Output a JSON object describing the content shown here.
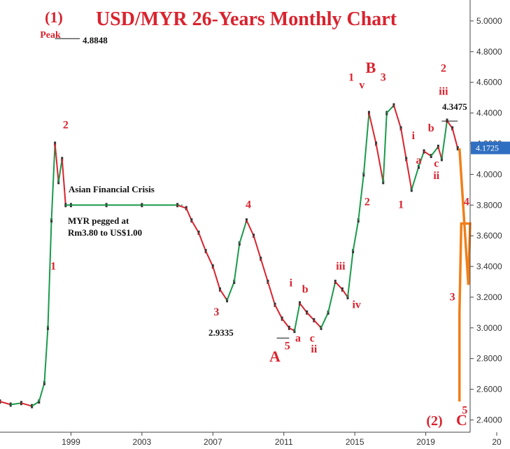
{
  "chart_data": {
    "type": "candlestick",
    "title": "USD/MYR 26-Years Monthly Chart",
    "xlim": [
      1995.0,
      2021.5
    ],
    "ylim": [
      2.32,
      5.1
    ],
    "x_ticks": [
      "1999",
      "2003",
      "2007",
      "2011",
      "2015",
      "2019",
      "20"
    ],
    "y_ticks": [
      "5.0000",
      "4.8000",
      "4.6000",
      "4.4000",
      "4.2000",
      "4.0000",
      "3.8000",
      "3.6000",
      "3.4000",
      "3.2000",
      "3.0000",
      "2.8000",
      "2.6000",
      "2.4000"
    ],
    "last_price": "4.1725",
    "grid": false,
    "series": [
      {
        "x": [
          1995.0,
          1995.6,
          1996.2,
          1996.8,
          1997.2,
          1997.5,
          1997.7,
          1997.9,
          1998.1,
          1998.3,
          1998.5,
          1998.7,
          1999.0,
          2001.0,
          2003.0,
          2005.0,
          2005.5,
          2005.8,
          2006.2,
          2006.6,
          2007.0,
          2007.4,
          2007.8,
          2008.2,
          2008.5,
          2008.9,
          2009.3,
          2009.7,
          2010.1,
          2010.5,
          2010.9,
          2011.3,
          2011.6,
          2011.9,
          2012.3,
          2012.7,
          2013.1,
          2013.5,
          2013.9,
          2014.3,
          2014.6,
          2014.9,
          2015.2,
          2015.5,
          2015.8,
          2016.2,
          2016.6,
          2016.8,
          2017.2,
          2017.6,
          2017.9,
          2018.2,
          2018.6,
          2018.9,
          2019.3,
          2019.7,
          2019.9,
          2020.2,
          2020.5,
          2020.8
        ],
        "y": [
          2.52,
          2.5,
          2.51,
          2.49,
          2.52,
          2.64,
          3.0,
          3.7,
          4.2,
          3.95,
          4.1,
          3.8,
          3.8,
          3.8,
          3.8,
          3.8,
          3.78,
          3.7,
          3.62,
          3.5,
          3.4,
          3.25,
          3.18,
          3.3,
          3.55,
          3.7,
          3.6,
          3.45,
          3.3,
          3.15,
          3.06,
          3.0,
          2.98,
          3.16,
          3.1,
          3.05,
          3.0,
          3.1,
          3.3,
          3.25,
          3.2,
          3.5,
          3.7,
          4.0,
          4.4,
          4.2,
          3.95,
          4.4,
          4.45,
          4.3,
          4.1,
          3.9,
          4.05,
          4.15,
          4.12,
          4.18,
          4.1,
          4.35,
          4.3,
          4.17
        ]
      }
    ],
    "projection": [
      {
        "x": 2020.9,
        "y": 4.17
      },
      {
        "x": 2021.4,
        "y": 3.28
      },
      {
        "x": 2021.5,
        "y": 3.68
      },
      {
        "x": 2021.0,
        "y": 3.68
      },
      {
        "x": 2020.9,
        "y": 3.1
      },
      {
        "x": 2020.9,
        "y": 2.52
      }
    ],
    "labels": {
      "subwave_one": "(1)",
      "peak_label": "Peak",
      "peak_price": "4.8848",
      "asian_crisis": "Asian Financial Crisis",
      "peg_line1": "MYR pegged at",
      "peg_line2": "Rm3.80 to US$1.00",
      "low_price": "2.9335",
      "high_price": "4.3475",
      "bottom_wave": "(2)",
      "wave_A": "A",
      "wave_B": "B",
      "wave_C": "C"
    },
    "wave_labels": [
      {
        "t": "2",
        "x": 1998.7,
        "y": 4.3
      },
      {
        "t": "1",
        "x": 1998.0,
        "y": 3.38
      },
      {
        "t": "4",
        "x": 2009.0,
        "y": 3.78
      },
      {
        "t": "3",
        "x": 2007.2,
        "y": 3.08
      },
      {
        "t": "5",
        "x": 2011.2,
        "y": 2.86
      },
      {
        "t": "i",
        "x": 2011.4,
        "y": 3.27
      },
      {
        "t": "a",
        "x": 2011.8,
        "y": 2.91
      },
      {
        "t": "b",
        "x": 2012.2,
        "y": 3.23
      },
      {
        "t": "c",
        "x": 2012.6,
        "y": 2.91
      },
      {
        "t": "ii",
        "x": 2012.7,
        "y": 2.84
      },
      {
        "t": "iii",
        "x": 2014.2,
        "y": 3.38
      },
      {
        "t": "iv",
        "x": 2015.1,
        "y": 3.13
      },
      {
        "t": "1",
        "x": 2014.8,
        "y": 4.61
      },
      {
        "t": "v",
        "x": 2015.4,
        "y": 4.56
      },
      {
        "t": "2",
        "x": 2015.7,
        "y": 3.8
      },
      {
        "t": "3",
        "x": 2016.6,
        "y": 4.61
      },
      {
        "t": "1",
        "x": 2017.6,
        "y": 3.78
      },
      {
        "t": "i",
        "x": 2018.3,
        "y": 4.23
      },
      {
        "t": "a",
        "x": 2018.6,
        "y": 4.07
      },
      {
        "t": "b",
        "x": 2019.3,
        "y": 4.28
      },
      {
        "t": "c",
        "x": 2019.6,
        "y": 4.05
      },
      {
        "t": "ii",
        "x": 2019.6,
        "y": 3.97
      },
      {
        "t": "iii",
        "x": 2020.0,
        "y": 4.52
      },
      {
        "t": "2",
        "x": 2020.0,
        "y": 4.67
      },
      {
        "t": "3",
        "x": 2020.5,
        "y": 3.18
      },
      {
        "t": "4",
        "x": 2021.3,
        "y": 3.8
      },
      {
        "t": "5",
        "x": 2021.2,
        "y": 2.44
      }
    ]
  }
}
